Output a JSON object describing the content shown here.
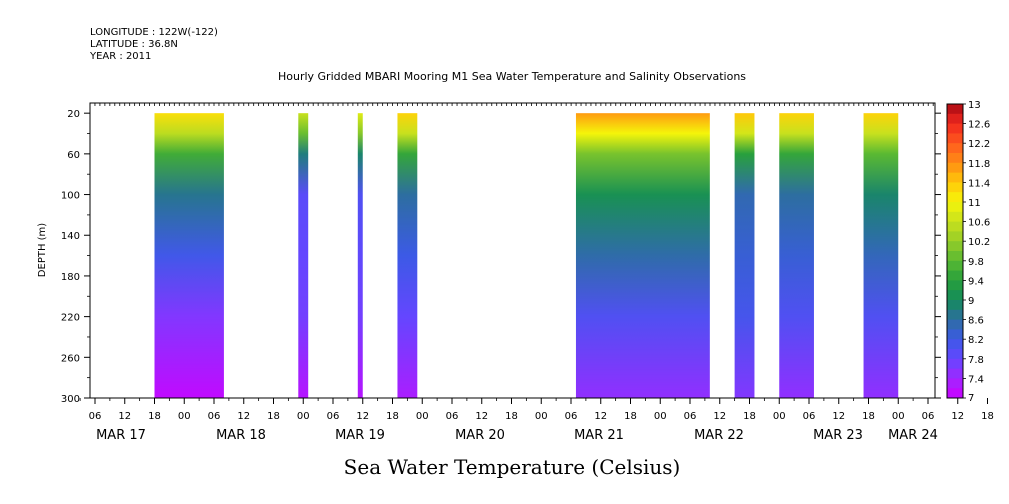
{
  "meta": {
    "longitude": "LONGITUDE : 122W(-122)",
    "latitude": "LATITUDE : 36.8N",
    "year": "YEAR : 2011"
  },
  "title": "Hourly Gridded MBARI Mooring M1 Sea Water Temperature and Salinity Observations",
  "subtitle": "Sea Water Temperature (Celsius)",
  "chart_data": {
    "type": "heatmap",
    "title": "Hourly Gridded MBARI Mooring M1 Sea Water Temperature and Salinity Observations",
    "variable_label": "Sea Water Temperature (Celsius)",
    "ylabel": "DEPTH (m)",
    "ylim": [
      300,
      10
    ],
    "y_reversed": true,
    "y_ticks": [
      20,
      60,
      100,
      140,
      180,
      220,
      260,
      300
    ],
    "xlim_hours": [
      0,
      168
    ],
    "x_hour_ticks": [
      "06",
      "12",
      "18",
      "00",
      "06",
      "12",
      "18",
      "00",
      "06",
      "12",
      "18",
      "00",
      "06",
      "12",
      "18",
      "00",
      "06",
      "12",
      "18",
      "00",
      "06",
      "12",
      "18",
      "00",
      "06",
      "12",
      "18",
      "00",
      "06",
      "12",
      "18",
      "00"
    ],
    "x_date_labels": [
      "MAR 17",
      "MAR 18",
      "MAR 19",
      "MAR 20",
      "MAR 21",
      "MAR 22",
      "MAR 23",
      "MAR 24"
    ],
    "colorbar": {
      "labels": [
        "13",
        "12.6",
        "12.2",
        "11.8",
        "11.4",
        "11",
        "10.6",
        "10.2",
        "9.8",
        "9.4",
        "9",
        "8.6",
        "8.2",
        "7.8",
        "7.4",
        "7"
      ],
      "min": 7,
      "max": 13
    },
    "data_segments": [
      {
        "start": "MAR 17 18:00",
        "end": "MAR 18 08:00",
        "surface_temp": 11.2,
        "temp_60m": 9.6,
        "temp_300m": 7.1
      },
      {
        "start": "MAR 18 23:00",
        "end": "MAR 19 01:00",
        "surface_temp": 10.6,
        "temp_60m": 8.8,
        "temp_300m": 7.2
      },
      {
        "start": "MAR 19 11:00",
        "end": "MAR 19 12:00",
        "surface_temp": 10.8,
        "temp_60m": 8.9,
        "temp_300m": 7.2
      },
      {
        "start": "MAR 19 19:00",
        "end": "MAR 19 23:00",
        "surface_temp": 11.3,
        "temp_60m": 9.5,
        "temp_300m": 7.3
      },
      {
        "start": "MAR 21 07:00",
        "end": "MAR 22 10:00",
        "surface_temp": 11.7,
        "temp_60m": 10.0,
        "temp_300m": 7.5
      },
      {
        "start": "MAR 22 15:00",
        "end": "MAR 22 19:00",
        "surface_temp": 11.4,
        "temp_60m": 9.4,
        "temp_300m": 7.6
      },
      {
        "start": "MAR 23 00:00",
        "end": "MAR 23 07:00",
        "surface_temp": 11.3,
        "temp_60m": 9.5,
        "temp_300m": 7.5
      },
      {
        "start": "MAR 23 17:00",
        "end": "MAR 24 00:00",
        "surface_temp": 11.3,
        "temp_60m": 9.8,
        "temp_300m": 7.5
      }
    ]
  }
}
